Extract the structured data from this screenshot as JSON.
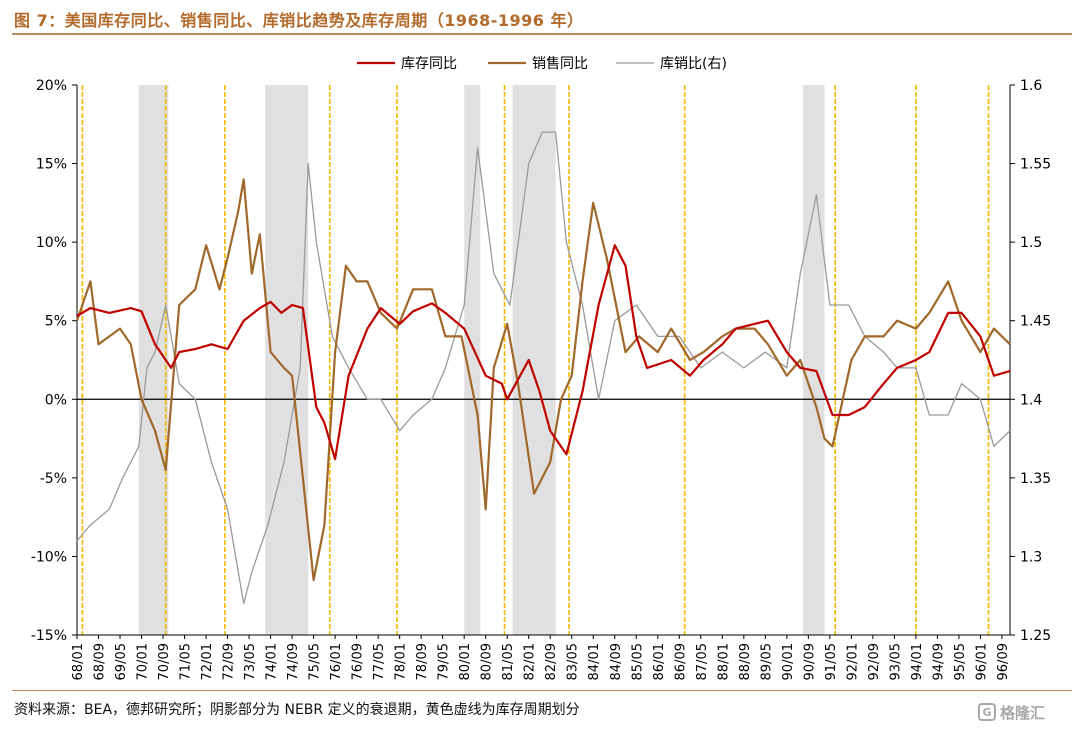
{
  "figure": {
    "title": "图 7：美国库存同比、销售同比、库销比趋势及库存周期（1968-1996 年）",
    "source": "资料来源：BEA，德邦研究所；阴影部分为 NEBR 定义的衰退期，黄色虚线为库存周期划分",
    "watermark": "格隆汇",
    "watermark_icon": "gelonghui-logo-icon"
  },
  "colors": {
    "inventory": "#c00000",
    "sales": "#a0682a",
    "ratio": "#9a9a9a",
    "recession": "#e0e0e0",
    "cycle_line": "#f5b800",
    "title": "#b36b2c"
  },
  "chart_data": {
    "type": "line",
    "title": "",
    "xlabel": "",
    "ylabel": "",
    "x_range": [
      "1968-01",
      "1996-12"
    ],
    "x_tick_labels": [
      "68/01",
      "68/09",
      "69/05",
      "70/01",
      "70/09",
      "71/05",
      "72/01",
      "72/09",
      "73/05",
      "74/01",
      "74/09",
      "75/05",
      "76/01",
      "76/09",
      "77/05",
      "78/01",
      "78/09",
      "79/05",
      "80/01",
      "80/09",
      "81/05",
      "82/01",
      "82/09",
      "83/05",
      "84/01",
      "84/09",
      "85/05",
      "86/01",
      "86/09",
      "87/05",
      "88/01",
      "88/09",
      "89/05",
      "90/01",
      "90/09",
      "91/05",
      "92/01",
      "92/09",
      "93/05",
      "94/01",
      "94/09",
      "95/05",
      "96/01",
      "96/09"
    ],
    "y_left": {
      "min": -15,
      "max": 20,
      "ticks": [
        -15,
        -10,
        -5,
        0,
        5,
        10,
        15,
        20
      ],
      "tick_labels": [
        "-15%",
        "-10%",
        "-5%",
        "0%",
        "5%",
        "10%",
        "15%",
        "20%"
      ]
    },
    "y_right": {
      "min": 1.25,
      "max": 1.6,
      "ticks": [
        1.25,
        1.3,
        1.35,
        1.4,
        1.45,
        1.5,
        1.55,
        1.6
      ],
      "tick_labels": [
        "1.25",
        "1.3",
        "1.35",
        "1.4",
        "1.45",
        "1.5",
        "1.55",
        "1.6"
      ]
    },
    "grid": false,
    "legend_position": "top",
    "recessions": [
      [
        "1969-12",
        "1970-11"
      ],
      [
        "1973-11",
        "1975-03"
      ],
      [
        "1980-01",
        "1980-07"
      ],
      [
        "1981-07",
        "1982-11"
      ],
      [
        "1990-07",
        "1991-03"
      ]
    ],
    "cycle_divisions": [
      "1968-03",
      "1970-10",
      "1972-08",
      "1975-11",
      "1977-12",
      "1981-04",
      "1983-04",
      "1986-11",
      "1991-07",
      "1994-01",
      "1996-04"
    ],
    "series": [
      {
        "name": "库存同比",
        "axis": "left",
        "points": [
          [
            "1968-01",
            5.3
          ],
          [
            "1968-06",
            5.8
          ],
          [
            "1969-01",
            5.5
          ],
          [
            "1969-09",
            5.8
          ],
          [
            "1970-01",
            5.6
          ],
          [
            "1970-06",
            3.5
          ],
          [
            "1970-12",
            2.0
          ],
          [
            "1971-03",
            3.0
          ],
          [
            "1971-09",
            3.2
          ],
          [
            "1972-03",
            3.5
          ],
          [
            "1972-09",
            3.2
          ],
          [
            "1973-03",
            5.0
          ],
          [
            "1973-09",
            5.8
          ],
          [
            "1974-01",
            6.2
          ],
          [
            "1974-05",
            5.5
          ],
          [
            "1974-09",
            6.0
          ],
          [
            "1975-01",
            5.8
          ],
          [
            "1975-06",
            -0.5
          ],
          [
            "1975-09",
            -1.5
          ],
          [
            "1976-01",
            -3.8
          ],
          [
            "1976-06",
            1.5
          ],
          [
            "1977-01",
            4.5
          ],
          [
            "1977-06",
            5.8
          ],
          [
            "1978-01",
            4.8
          ],
          [
            "1978-06",
            5.6
          ],
          [
            "1979-01",
            6.1
          ],
          [
            "1979-06",
            5.5
          ],
          [
            "1980-01",
            4.5
          ],
          [
            "1980-09",
            1.5
          ],
          [
            "1981-03",
            1.0
          ],
          [
            "1981-05",
            0.0
          ],
          [
            "1982-01",
            2.5
          ],
          [
            "1982-05",
            0.5
          ],
          [
            "1982-09",
            -2.0
          ],
          [
            "1983-03",
            -3.5
          ],
          [
            "1983-09",
            0.5
          ],
          [
            "1984-03",
            6.0
          ],
          [
            "1984-09",
            9.8
          ],
          [
            "1985-01",
            8.5
          ],
          [
            "1985-05",
            4.0
          ],
          [
            "1985-09",
            2.0
          ],
          [
            "1986-06",
            2.5
          ],
          [
            "1987-01",
            1.5
          ],
          [
            "1987-06",
            2.5
          ],
          [
            "1988-01",
            3.5
          ],
          [
            "1988-06",
            4.5
          ],
          [
            "1989-01",
            4.8
          ],
          [
            "1989-06",
            5.0
          ],
          [
            "1990-01",
            3.0
          ],
          [
            "1990-06",
            2.0
          ],
          [
            "1990-12",
            1.8
          ],
          [
            "1991-06",
            -1.0
          ],
          [
            "1991-12",
            -1.0
          ],
          [
            "1992-06",
            -0.5
          ],
          [
            "1993-01",
            1.0
          ],
          [
            "1993-06",
            2.0
          ],
          [
            "1994-01",
            2.5
          ],
          [
            "1994-06",
            3.0
          ],
          [
            "1995-01",
            5.5
          ],
          [
            "1995-06",
            5.5
          ],
          [
            "1996-01",
            4.0
          ],
          [
            "1996-06",
            1.5
          ],
          [
            "1996-12",
            1.8
          ]
        ]
      },
      {
        "name": "销售同比",
        "axis": "left",
        "points": [
          [
            "1968-01",
            5.0
          ],
          [
            "1968-06",
            7.5
          ],
          [
            "1968-09",
            3.5
          ],
          [
            "1969-01",
            4.0
          ],
          [
            "1969-05",
            4.5
          ],
          [
            "1969-09",
            3.5
          ],
          [
            "1970-01",
            0.0
          ],
          [
            "1970-06",
            -2.0
          ],
          [
            "1970-10",
            -4.5
          ],
          [
            "1971-03",
            6.0
          ],
          [
            "1971-09",
            7.0
          ],
          [
            "1972-01",
            9.8
          ],
          [
            "1972-06",
            7.0
          ],
          [
            "1972-09",
            9.0
          ],
          [
            "1973-01",
            12.0
          ],
          [
            "1973-03",
            14.0
          ],
          [
            "1973-06",
            8.0
          ],
          [
            "1973-09",
            10.5
          ],
          [
            "1974-01",
            3.0
          ],
          [
            "1974-06",
            2.0
          ],
          [
            "1974-09",
            1.5
          ],
          [
            "1975-01",
            -5.0
          ],
          [
            "1975-05",
            -11.5
          ],
          [
            "1975-09",
            -8.0
          ],
          [
            "1976-01",
            3.0
          ],
          [
            "1976-05",
            8.5
          ],
          [
            "1976-09",
            7.5
          ],
          [
            "1977-01",
            7.5
          ],
          [
            "1977-06",
            5.5
          ],
          [
            "1977-12",
            4.5
          ],
          [
            "1978-06",
            7.0
          ],
          [
            "1979-01",
            7.0
          ],
          [
            "1979-06",
            4.0
          ],
          [
            "1979-12",
            4.0
          ],
          [
            "1980-06",
            -1.0
          ],
          [
            "1980-09",
            -7.0
          ],
          [
            "1980-12",
            2.0
          ],
          [
            "1981-05",
            4.8
          ],
          [
            "1981-09",
            1.0
          ],
          [
            "1982-03",
            -6.0
          ],
          [
            "1982-09",
            -4.0
          ],
          [
            "1983-01",
            0.0
          ],
          [
            "1983-05",
            1.5
          ],
          [
            "1983-09",
            7.5
          ],
          [
            "1984-01",
            12.5
          ],
          [
            "1984-06",
            9.0
          ],
          [
            "1985-01",
            3.0
          ],
          [
            "1985-06",
            4.0
          ],
          [
            "1986-01",
            3.0
          ],
          [
            "1986-06",
            4.5
          ],
          [
            "1987-01",
            2.5
          ],
          [
            "1987-06",
            3.0
          ],
          [
            "1988-01",
            4.0
          ],
          [
            "1988-06",
            4.5
          ],
          [
            "1989-01",
            4.5
          ],
          [
            "1989-06",
            3.5
          ],
          [
            "1990-01",
            1.5
          ],
          [
            "1990-06",
            2.5
          ],
          [
            "1990-12",
            -0.5
          ],
          [
            "1991-03",
            -2.5
          ],
          [
            "1991-06",
            -3.0
          ],
          [
            "1992-01",
            2.5
          ],
          [
            "1992-06",
            4.0
          ],
          [
            "1993-01",
            4.0
          ],
          [
            "1993-06",
            5.0
          ],
          [
            "1994-01",
            4.5
          ],
          [
            "1994-06",
            5.5
          ],
          [
            "1995-01",
            7.5
          ],
          [
            "1995-06",
            5.0
          ],
          [
            "1996-01",
            3.0
          ],
          [
            "1996-06",
            4.5
          ],
          [
            "1996-12",
            3.5
          ]
        ]
      },
      {
        "name": "库销比(右)",
        "axis": "right",
        "points": [
          [
            "1968-01",
            1.31
          ],
          [
            "1968-06",
            1.32
          ],
          [
            "1969-01",
            1.33
          ],
          [
            "1969-06",
            1.35
          ],
          [
            "1969-12",
            1.37
          ],
          [
            "1970-03",
            1.42
          ],
          [
            "1970-06",
            1.43
          ],
          [
            "1970-10",
            1.46
          ],
          [
            "1971-03",
            1.41
          ],
          [
            "1971-09",
            1.4
          ],
          [
            "1972-03",
            1.36
          ],
          [
            "1972-09",
            1.33
          ],
          [
            "1973-03",
            1.27
          ],
          [
            "1973-06",
            1.29
          ],
          [
            "1973-12",
            1.32
          ],
          [
            "1974-06",
            1.36
          ],
          [
            "1974-12",
            1.42
          ],
          [
            "1975-03",
            1.55
          ],
          [
            "1975-06",
            1.5
          ],
          [
            "1975-12",
            1.44
          ],
          [
            "1976-06",
            1.42
          ],
          [
            "1977-01",
            1.4
          ],
          [
            "1977-06",
            1.4
          ],
          [
            "1978-01",
            1.38
          ],
          [
            "1978-06",
            1.39
          ],
          [
            "1979-01",
            1.4
          ],
          [
            "1979-06",
            1.42
          ],
          [
            "1980-01",
            1.46
          ],
          [
            "1980-06",
            1.56
          ],
          [
            "1980-12",
            1.48
          ],
          [
            "1981-06",
            1.46
          ],
          [
            "1982-01",
            1.55
          ],
          [
            "1982-06",
            1.57
          ],
          [
            "1982-11",
            1.57
          ],
          [
            "1983-03",
            1.5
          ],
          [
            "1983-09",
            1.46
          ],
          [
            "1984-03",
            1.4
          ],
          [
            "1984-09",
            1.45
          ],
          [
            "1985-05",
            1.46
          ],
          [
            "1986-01",
            1.44
          ],
          [
            "1986-09",
            1.44
          ],
          [
            "1987-05",
            1.42
          ],
          [
            "1988-01",
            1.43
          ],
          [
            "1988-09",
            1.42
          ],
          [
            "1989-05",
            1.43
          ],
          [
            "1990-01",
            1.42
          ],
          [
            "1990-06",
            1.48
          ],
          [
            "1990-12",
            1.53
          ],
          [
            "1991-05",
            1.46
          ],
          [
            "1991-12",
            1.46
          ],
          [
            "1992-06",
            1.44
          ],
          [
            "1993-01",
            1.43
          ],
          [
            "1993-06",
            1.42
          ],
          [
            "1994-01",
            1.42
          ],
          [
            "1994-06",
            1.39
          ],
          [
            "1995-01",
            1.39
          ],
          [
            "1995-06",
            1.41
          ],
          [
            "1996-01",
            1.4
          ],
          [
            "1996-06",
            1.37
          ],
          [
            "1996-12",
            1.38
          ]
        ]
      }
    ]
  }
}
